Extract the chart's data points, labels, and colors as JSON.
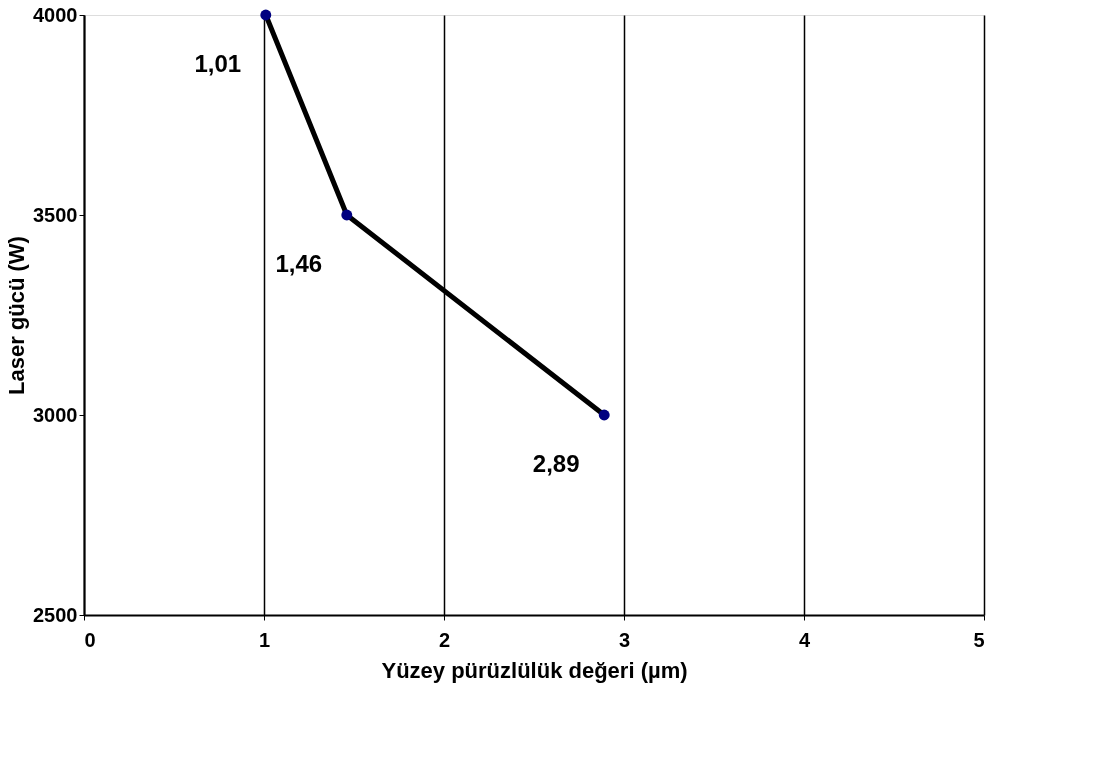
{
  "chart_data": {
    "type": "line",
    "xlabel": "Yüzey pürüzlülük değeri (µm)",
    "ylabel": "Laser gücü (W)",
    "x": [
      1.01,
      1.46,
      2.89
    ],
    "series": [
      {
        "color": "#000000",
        "values": [
          4000,
          3500,
          3000
        ]
      }
    ],
    "xlim": [
      0,
      5
    ],
    "xticks": [
      0,
      1,
      2,
      3,
      4,
      5
    ],
    "ylim": [
      2500,
      4000
    ],
    "yticks": [
      2500,
      3000,
      3500,
      4000
    ],
    "grid": "x",
    "marker": "circle",
    "line_style": "solid",
    "annotations": [
      {
        "text": "1,01",
        "x": 1.01,
        "y": 4000
      },
      {
        "text": "1,46",
        "x": 1.46,
        "y": 3500
      },
      {
        "text": "2,89",
        "x": 2.89,
        "y": 3000
      }
    ]
  }
}
